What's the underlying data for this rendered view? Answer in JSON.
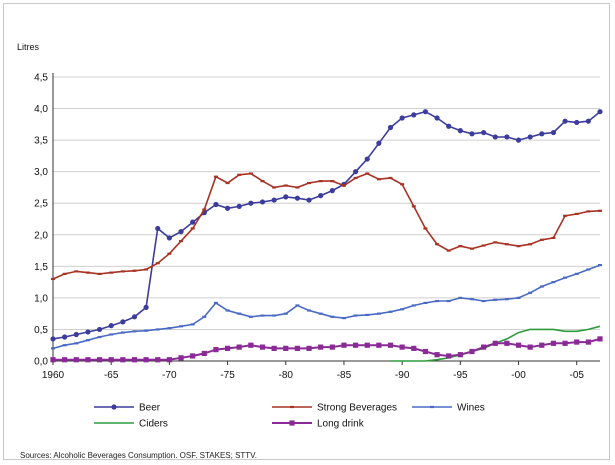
{
  "chart_data": {
    "type": "line",
    "ylabel": "Litres",
    "xlabel": "",
    "ylim": [
      0,
      4.5
    ],
    "xlim": [
      1960,
      2007
    ],
    "grid": "horizontal",
    "legend_position": "bottom",
    "x_ticks": [
      1960,
      1965,
      1970,
      1975,
      1980,
      1985,
      1990,
      1995,
      2000,
      2005
    ],
    "x_tick_labels": [
      "1960",
      "-65",
      "-70",
      "-75",
      "-80",
      "-85",
      "-90",
      "-95",
      "-00",
      "-05"
    ],
    "y_ticks": [
      0,
      0.5,
      1,
      1.5,
      2,
      2.5,
      3,
      3.5,
      4,
      4.5
    ],
    "y_tick_labels": [
      "0,0",
      "0,5",
      "1,0",
      "1,5",
      "2,0",
      "2,5",
      "3,0",
      "3,5",
      "4,0",
      "4,5"
    ],
    "x": [
      1960,
      1961,
      1962,
      1963,
      1964,
      1965,
      1966,
      1967,
      1968,
      1969,
      1970,
      1971,
      1972,
      1973,
      1974,
      1975,
      1976,
      1977,
      1978,
      1979,
      1980,
      1981,
      1982,
      1983,
      1984,
      1985,
      1986,
      1987,
      1988,
      1989,
      1990,
      1991,
      1992,
      1993,
      1994,
      1995,
      1996,
      1997,
      1998,
      1999,
      2000,
      2001,
      2002,
      2003,
      2004,
      2005,
      2006,
      2007
    ],
    "series": [
      {
        "name": "Beer",
        "color": "#3c3c9c",
        "marker": "circle",
        "values": [
          0.35,
          0.38,
          0.42,
          0.46,
          0.5,
          0.56,
          0.62,
          0.7,
          0.85,
          2.1,
          1.95,
          2.05,
          2.2,
          2.35,
          2.48,
          2.42,
          2.45,
          2.5,
          2.52,
          2.55,
          2.6,
          2.58,
          2.55,
          2.62,
          2.7,
          2.8,
          3.0,
          3.2,
          3.45,
          3.7,
          3.85,
          3.9,
          3.95,
          3.85,
          3.72,
          3.65,
          3.6,
          3.62,
          3.55,
          3.55,
          3.5,
          3.55,
          3.6,
          3.62,
          3.8,
          3.78,
          3.8,
          3.95
        ]
      },
      {
        "name": "Strong Beverages",
        "color": "#a83224",
        "marker": "dash",
        "values": [
          1.3,
          1.38,
          1.42,
          1.4,
          1.38,
          1.4,
          1.42,
          1.43,
          1.45,
          1.55,
          1.7,
          1.9,
          2.1,
          2.4,
          2.92,
          2.82,
          2.95,
          2.97,
          2.85,
          2.75,
          2.78,
          2.75,
          2.82,
          2.85,
          2.85,
          2.78,
          2.9,
          2.97,
          2.88,
          2.9,
          2.8,
          2.45,
          2.1,
          1.85,
          1.75,
          1.82,
          1.78,
          1.83,
          1.88,
          1.85,
          1.82,
          1.85,
          1.92,
          1.95,
          2.3,
          2.33,
          2.37,
          2.38
        ]
      },
      {
        "name": "Wines",
        "color": "#4a6bc4",
        "marker": "dash",
        "values": [
          0.2,
          0.25,
          0.28,
          0.33,
          0.38,
          0.42,
          0.45,
          0.47,
          0.48,
          0.5,
          0.52,
          0.55,
          0.58,
          0.7,
          0.92,
          0.8,
          0.75,
          0.7,
          0.72,
          0.72,
          0.75,
          0.88,
          0.8,
          0.75,
          0.7,
          0.68,
          0.72,
          0.73,
          0.75,
          0.78,
          0.82,
          0.88,
          0.92,
          0.95,
          0.95,
          1.0,
          0.98,
          0.95,
          0.97,
          0.98,
          1.0,
          1.08,
          1.18,
          1.25,
          1.32,
          1.38,
          1.45,
          1.52
        ]
      },
      {
        "name": "Ciders",
        "color": "#2e9a3c",
        "marker": "none",
        "values": [
          null,
          null,
          null,
          null,
          null,
          null,
          null,
          null,
          null,
          null,
          null,
          null,
          null,
          null,
          null,
          null,
          null,
          null,
          null,
          null,
          null,
          null,
          null,
          null,
          null,
          null,
          null,
          null,
          null,
          0.0,
          0.0,
          0.0,
          0.0,
          0.02,
          0.05,
          0.1,
          0.15,
          0.2,
          0.28,
          0.35,
          0.45,
          0.5,
          0.5,
          0.5,
          0.47,
          0.47,
          0.5,
          0.55
        ]
      },
      {
        "name": "Long drink",
        "color": "#8a2a96",
        "marker": "square",
        "values": [
          0.02,
          0.02,
          0.02,
          0.02,
          0.02,
          0.02,
          0.02,
          0.02,
          0.02,
          0.02,
          0.02,
          0.05,
          0.08,
          0.12,
          0.18,
          0.2,
          0.22,
          0.25,
          0.22,
          0.2,
          0.2,
          0.2,
          0.2,
          0.22,
          0.22,
          0.25,
          0.25,
          0.25,
          0.25,
          0.25,
          0.22,
          0.2,
          0.15,
          0.1,
          0.08,
          0.1,
          0.15,
          0.22,
          0.28,
          0.28,
          0.25,
          0.22,
          0.25,
          0.28,
          0.28,
          0.3,
          0.3,
          0.35
        ]
      }
    ],
    "legend": [
      {
        "label": "Beer",
        "series": 0
      },
      {
        "label": "Strong Beverages",
        "series": 1
      },
      {
        "label": "Wines",
        "series": 2
      },
      {
        "label": "Ciders",
        "series": 3
      },
      {
        "label": "Long drink",
        "series": 4
      }
    ]
  },
  "source_note": "Sources: Alcoholic Beverages Consumption. OSF. STAKES; STTV."
}
